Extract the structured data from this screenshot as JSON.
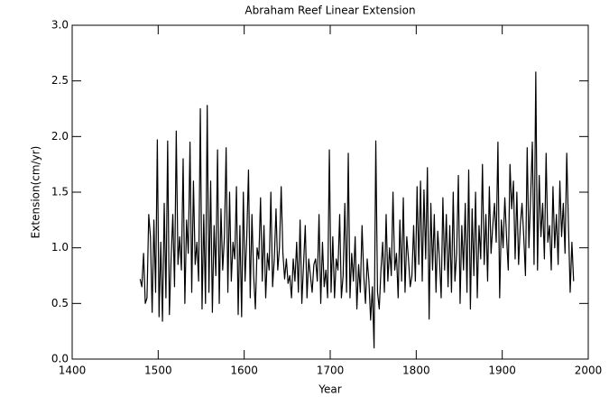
{
  "chart_data": {
    "type": "line",
    "title": "Abraham Reef Linear Extension",
    "xlabel": "Year",
    "ylabel": "Extension(cm/yr)",
    "xlim": [
      1400,
      2000
    ],
    "xticks": [
      1400,
      1500,
      1600,
      1700,
      1800,
      1900,
      2000
    ],
    "ylim": [
      0,
      3
    ],
    "yticks": [
      {
        "value": 0,
        "label": "0.0"
      },
      0.5,
      {
        "value": 1,
        "label": "1.0"
      },
      1.5,
      {
        "value": 2,
        "label": "2.0"
      },
      2.5,
      {
        "value": 3,
        "label": "3.0"
      }
    ],
    "color": "#000000",
    "x": [
      1479,
      1481,
      1483,
      1485,
      1487,
      1489,
      1491,
      1493,
      1495,
      1497,
      1499,
      1501,
      1503,
      1505,
      1507,
      1509,
      1511,
      1513,
      1515,
      1517,
      1519,
      1521,
      1523,
      1525,
      1527,
      1529,
      1531,
      1533,
      1535,
      1537,
      1539,
      1541,
      1543,
      1545,
      1547,
      1549,
      1551,
      1553,
      1555,
      1557,
      1559,
      1561,
      1563,
      1565,
      1567,
      1569,
      1571,
      1573,
      1575,
      1577,
      1579,
      1581,
      1583,
      1585,
      1587,
      1589,
      1591,
      1593,
      1595,
      1597,
      1599,
      1601,
      1603,
      1605,
      1607,
      1609,
      1611,
      1613,
      1615,
      1617,
      1619,
      1621,
      1623,
      1625,
      1627,
      1629,
      1631,
      1633,
      1635,
      1637,
      1639,
      1641,
      1643,
      1645,
      1647,
      1649,
      1651,
      1653,
      1655,
      1657,
      1659,
      1661,
      1663,
      1665,
      1667,
      1669,
      1671,
      1673,
      1675,
      1677,
      1679,
      1681,
      1683,
      1685,
      1687,
      1689,
      1691,
      1693,
      1695,
      1697,
      1699,
      1701,
      1703,
      1705,
      1707,
      1709,
      1711,
      1713,
      1715,
      1717,
      1719,
      1721,
      1723,
      1725,
      1727,
      1729,
      1731,
      1733,
      1735,
      1737,
      1739,
      1741,
      1743,
      1745,
      1747,
      1749,
      1751,
      1753,
      1755,
      1757,
      1759,
      1761,
      1763,
      1765,
      1767,
      1769,
      1771,
      1773,
      1775,
      1777,
      1779,
      1781,
      1783,
      1785,
      1787,
      1789,
      1791,
      1793,
      1795,
      1797,
      1799,
      1801,
      1803,
      1805,
      1807,
      1809,
      1811,
      1813,
      1815,
      1817,
      1819,
      1821,
      1823,
      1825,
      1827,
      1829,
      1831,
      1833,
      1835,
      1837,
      1839,
      1841,
      1843,
      1845,
      1847,
      1849,
      1851,
      1853,
      1855,
      1857,
      1859,
      1861,
      1863,
      1865,
      1867,
      1869,
      1871,
      1873,
      1875,
      1877,
      1879,
      1881,
      1883,
      1885,
      1887,
      1889,
      1891,
      1893,
      1895,
      1897,
      1899,
      1901,
      1903,
      1905,
      1907,
      1909,
      1911,
      1913,
      1915,
      1917,
      1919,
      1921,
      1923,
      1925,
      1927,
      1929,
      1931,
      1933,
      1935,
      1937,
      1939,
      1941,
      1943,
      1945,
      1947,
      1949,
      1951,
      1953,
      1955,
      1957,
      1959,
      1961,
      1963,
      1965,
      1967,
      1969,
      1971,
      1973,
      1975,
      1977,
      1979,
      1981,
      1983
    ],
    "values": [
      0.72,
      0.65,
      0.95,
      0.5,
      0.55,
      1.3,
      1.1,
      0.42,
      1.25,
      0.6,
      1.97,
      0.38,
      1.05,
      0.34,
      1.4,
      0.55,
      1.96,
      0.4,
      0.9,
      1.3,
      0.65,
      2.05,
      0.85,
      1.1,
      0.8,
      1.8,
      0.5,
      1.25,
      0.95,
      1.95,
      0.6,
      1.6,
      0.85,
      1.05,
      0.7,
      2.25,
      0.45,
      1.3,
      0.5,
      2.28,
      0.6,
      1.6,
      0.42,
      1.2,
      0.75,
      1.88,
      0.5,
      1.35,
      0.8,
      1.1,
      1.9,
      0.6,
      1.5,
      0.7,
      1.05,
      0.9,
      1.55,
      0.4,
      1.2,
      0.38,
      1.5,
      0.7,
      1.1,
      1.7,
      0.55,
      1.3,
      0.75,
      0.45,
      1.0,
      0.9,
      1.45,
      0.7,
      1.2,
      0.55,
      0.95,
      0.8,
      1.5,
      0.65,
      0.9,
      1.35,
      0.8,
      1.0,
      1.55,
      0.95,
      0.72,
      0.9,
      0.68,
      0.75,
      0.55,
      0.9,
      0.7,
      1.05,
      0.6,
      1.25,
      0.5,
      0.85,
      1.2,
      0.55,
      0.9,
      0.75,
      0.6,
      0.85,
      0.9,
      0.7,
      1.3,
      0.5,
      1.05,
      0.65,
      0.8,
      0.55,
      1.88,
      0.6,
      1.1,
      0.55,
      0.9,
      0.8,
      1.3,
      0.55,
      0.75,
      1.4,
      0.6,
      1.85,
      0.55,
      0.95,
      0.7,
      1.1,
      0.45,
      0.85,
      0.6,
      1.2,
      0.75,
      0.5,
      0.9,
      0.7,
      0.35,
      0.65,
      0.1,
      1.96,
      0.6,
      0.45,
      0.8,
      1.05,
      0.6,
      1.3,
      0.7,
      1.0,
      0.75,
      1.5,
      0.8,
      0.95,
      0.55,
      1.25,
      0.7,
      1.45,
      0.6,
      1.1,
      0.9,
      0.65,
      0.75,
      1.2,
      0.7,
      1.55,
      0.85,
      1.6,
      0.7,
      1.52,
      0.9,
      1.72,
      0.36,
      1.4,
      0.8,
      1.3,
      0.6,
      1.15,
      0.9,
      0.55,
      1.45,
      0.8,
      1.3,
      0.65,
      1.2,
      0.6,
      1.5,
      0.7,
      0.95,
      1.65,
      0.5,
      1.2,
      0.8,
      1.4,
      0.6,
      1.7,
      0.45,
      1.35,
      0.75,
      1.5,
      0.55,
      1.2,
      0.9,
      1.75,
      0.85,
      1.3,
      0.7,
      1.55,
      0.95,
      1.2,
      1.4,
      1.05,
      1.95,
      0.55,
      1.25,
      1.0,
      1.45,
      1.1,
      0.8,
      1.75,
      1.35,
      1.6,
      0.9,
      1.5,
      0.85,
      1.2,
      1.4,
      1.1,
      0.75,
      1.9,
      1.0,
      1.45,
      1.95,
      0.85,
      2.58,
      0.8,
      1.65,
      1.1,
      1.4,
      0.9,
      1.85,
      1.05,
      1.2,
      0.8,
      1.55,
      1.0,
      1.3,
      0.85,
      1.6,
      1.1,
      1.4,
      0.95,
      1.85,
      1.2,
      0.6,
      1.05,
      0.7
    ]
  }
}
